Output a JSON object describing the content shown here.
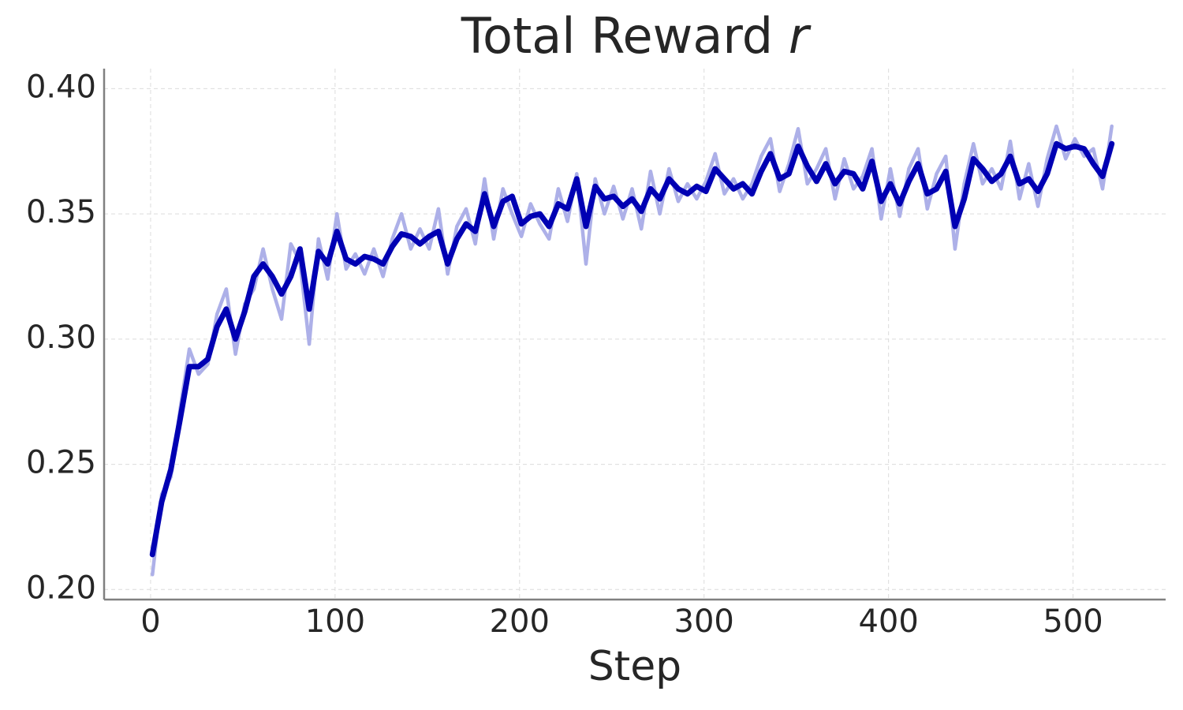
{
  "chart_data": {
    "type": "line",
    "title": "Total Reward",
    "title_symbol": "r",
    "x_label": "Step",
    "x": [
      1,
      6,
      11,
      16,
      21,
      26,
      31,
      36,
      41,
      46,
      51,
      56,
      61,
      66,
      71,
      76,
      81,
      86,
      91,
      96,
      101,
      106,
      111,
      116,
      121,
      126,
      131,
      136,
      141,
      146,
      151,
      156,
      161,
      166,
      171,
      176,
      181,
      186,
      191,
      196,
      201,
      206,
      211,
      216,
      221,
      226,
      231,
      236,
      241,
      246,
      251,
      256,
      261,
      266,
      271,
      276,
      281,
      286,
      291,
      296,
      301,
      306,
      311,
      316,
      321,
      326,
      331,
      336,
      341,
      346,
      351,
      356,
      361,
      366,
      371,
      376,
      381,
      386,
      391,
      396,
      401,
      406,
      411,
      416,
      421,
      426,
      431,
      436,
      441,
      446,
      451,
      456,
      461,
      466,
      471,
      476,
      481,
      486,
      491,
      496,
      501,
      506,
      511,
      516,
      521
    ],
    "series": [
      {
        "color": "#adb0e8",
        "width": 4.5,
        "values": [
          0.206,
          0.238,
          0.245,
          0.272,
          0.296,
          0.286,
          0.29,
          0.31,
          0.32,
          0.294,
          0.314,
          0.32,
          0.336,
          0.32,
          0.308,
          0.338,
          0.331,
          0.298,
          0.34,
          0.324,
          0.35,
          0.328,
          0.334,
          0.326,
          0.336,
          0.325,
          0.34,
          0.35,
          0.336,
          0.344,
          0.336,
          0.352,
          0.326,
          0.345,
          0.352,
          0.338,
          0.364,
          0.34,
          0.36,
          0.35,
          0.341,
          0.354,
          0.346,
          0.34,
          0.36,
          0.347,
          0.366,
          0.33,
          0.364,
          0.35,
          0.361,
          0.348,
          0.36,
          0.344,
          0.367,
          0.35,
          0.368,
          0.355,
          0.362,
          0.356,
          0.363,
          0.374,
          0.358,
          0.364,
          0.356,
          0.362,
          0.373,
          0.38,
          0.359,
          0.37,
          0.384,
          0.362,
          0.368,
          0.376,
          0.356,
          0.372,
          0.36,
          0.365,
          0.376,
          0.348,
          0.368,
          0.349,
          0.368,
          0.376,
          0.352,
          0.366,
          0.373,
          0.336,
          0.362,
          0.378,
          0.362,
          0.368,
          0.36,
          0.379,
          0.356,
          0.37,
          0.353,
          0.372,
          0.385,
          0.372,
          0.38,
          0.373,
          0.376,
          0.36,
          0.385
        ]
      },
      {
        "color": "#0000b3",
        "width": 7,
        "values": [
          0.214,
          0.235,
          0.248,
          0.268,
          0.289,
          0.289,
          0.292,
          0.305,
          0.312,
          0.3,
          0.311,
          0.325,
          0.33,
          0.325,
          0.318,
          0.325,
          0.336,
          0.312,
          0.335,
          0.33,
          0.343,
          0.332,
          0.33,
          0.333,
          0.332,
          0.33,
          0.337,
          0.342,
          0.341,
          0.338,
          0.341,
          0.343,
          0.33,
          0.34,
          0.346,
          0.343,
          0.358,
          0.345,
          0.355,
          0.357,
          0.346,
          0.349,
          0.35,
          0.345,
          0.354,
          0.352,
          0.364,
          0.345,
          0.361,
          0.356,
          0.357,
          0.353,
          0.356,
          0.351,
          0.36,
          0.356,
          0.364,
          0.36,
          0.358,
          0.361,
          0.359,
          0.368,
          0.364,
          0.36,
          0.362,
          0.358,
          0.367,
          0.374,
          0.364,
          0.366,
          0.377,
          0.369,
          0.363,
          0.37,
          0.362,
          0.367,
          0.366,
          0.36,
          0.371,
          0.355,
          0.362,
          0.354,
          0.363,
          0.37,
          0.358,
          0.36,
          0.367,
          0.345,
          0.356,
          0.372,
          0.368,
          0.363,
          0.366,
          0.373,
          0.362,
          0.364,
          0.359,
          0.366,
          0.378,
          0.376,
          0.377,
          0.376,
          0.37,
          0.365,
          0.378
        ]
      }
    ],
    "xlim": [
      -25.2,
      550.2
    ],
    "xticks": [
      0,
      100,
      200,
      300,
      400,
      500
    ],
    "ylim": [
      0.196,
      0.408
    ],
    "yticks": [
      {
        "value": 0.2,
        "label": "0.20"
      },
      {
        "value": 0.25,
        "label": "0.25"
      },
      {
        "value": 0.3,
        "label": "0.30"
      },
      {
        "value": 0.35,
        "label": "0.35"
      },
      {
        "value": 0.4,
        "label": "0.40"
      }
    ],
    "grid": true
  }
}
